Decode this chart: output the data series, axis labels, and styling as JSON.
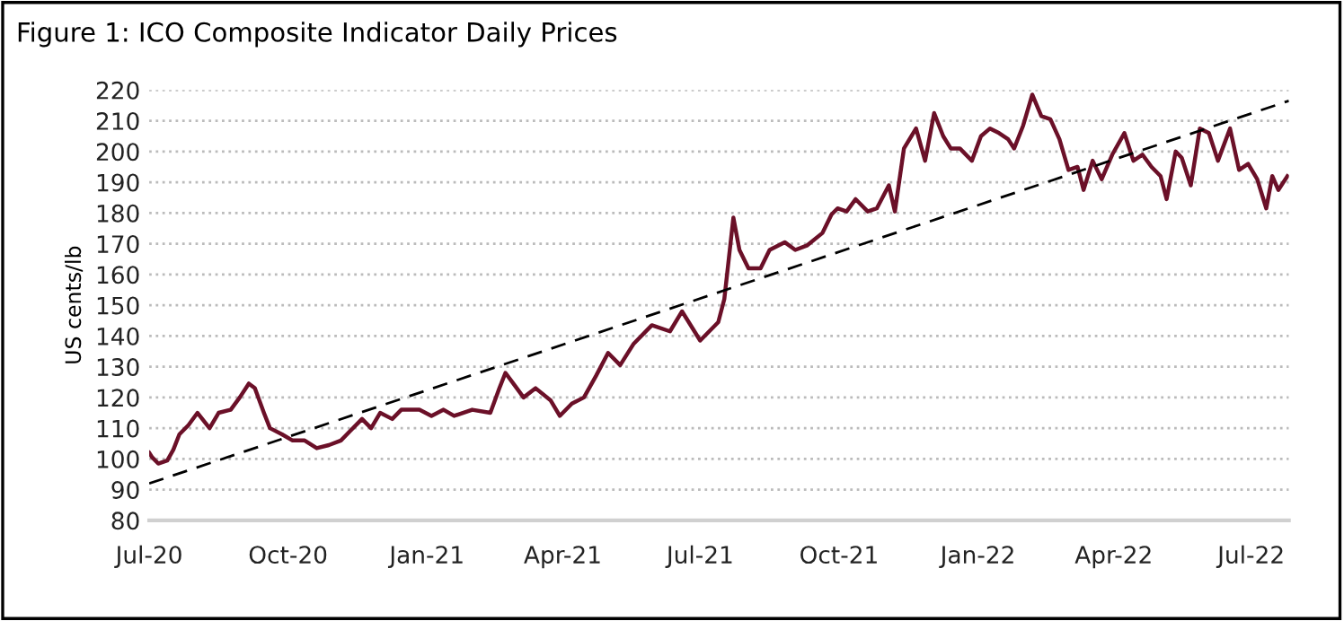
{
  "chart_data": {
    "type": "line",
    "title": "Figure 1: ICO Composite Indicator Daily Prices",
    "ylabel": "US cents/lb",
    "xlim": [
      "2020-07-01",
      "2022-07-26"
    ],
    "ylim": [
      80,
      220
    ],
    "xticks": [
      {
        "value": "2020-07-01",
        "label": "Jul-20"
      },
      {
        "value": "2020-10-01",
        "label": "Oct-20"
      },
      {
        "value": "2021-01-01",
        "label": "Jan-21"
      },
      {
        "value": "2021-04-01",
        "label": "Apr-21"
      },
      {
        "value": "2021-07-01",
        "label": "Jul-21"
      },
      {
        "value": "2021-10-01",
        "label": "Oct-21"
      },
      {
        "value": "2022-01-01",
        "label": "Jan-22"
      },
      {
        "value": "2022-04-01",
        "label": "Apr-22"
      },
      {
        "value": "2022-07-01",
        "label": "Jul-22"
      }
    ],
    "yticks": [
      80,
      90,
      100,
      110,
      120,
      130,
      140,
      150,
      160,
      170,
      180,
      190,
      200,
      210,
      220
    ],
    "grid": "y",
    "marker": "none",
    "series": [
      {
        "color": "#6b1028",
        "line_style": "solid",
        "x": [
          "2020-07-01",
          "2020-07-03",
          "2020-07-07",
          "2020-07-13",
          "2020-07-17",
          "2020-07-21",
          "2020-07-27",
          "2020-08-02",
          "2020-08-10",
          "2020-08-16",
          "2020-08-24",
          "2020-08-30",
          "2020-09-05",
          "2020-09-09",
          "2020-09-15",
          "2020-09-19",
          "2020-09-27",
          "2020-10-04",
          "2020-10-12",
          "2020-10-20",
          "2020-10-28",
          "2020-11-05",
          "2020-11-11",
          "2020-11-19",
          "2020-11-25",
          "2020-12-01",
          "2020-12-09",
          "2020-12-15",
          "2020-12-27",
          "2021-01-04",
          "2021-01-12",
          "2021-01-19",
          "2021-01-31",
          "2021-02-12",
          "2021-02-18",
          "2021-02-22",
          "2021-02-28",
          "2021-03-06",
          "2021-03-14",
          "2021-03-24",
          "2021-03-30",
          "2021-04-07",
          "2021-04-15",
          "2021-04-23",
          "2021-05-01",
          "2021-05-09",
          "2021-05-18",
          "2021-05-30",
          "2021-06-11",
          "2021-06-19",
          "2021-07-01",
          "2021-07-13",
          "2021-07-17",
          "2021-07-23",
          "2021-07-27",
          "2021-08-02",
          "2021-08-10",
          "2021-08-16",
          "2021-08-26",
          "2021-09-02",
          "2021-09-10",
          "2021-09-20",
          "2021-09-26",
          "2021-09-30",
          "2021-10-06",
          "2021-10-12",
          "2021-10-20",
          "2021-10-26",
          "2021-11-03",
          "2021-11-07",
          "2021-11-13",
          "2021-11-21",
          "2021-11-27",
          "2021-12-03",
          "2021-12-09",
          "2021-12-14",
          "2021-12-20",
          "2021-12-28",
          "2022-01-03",
          "2022-01-09",
          "2022-01-15",
          "2022-01-21",
          "2022-01-25",
          "2022-01-31",
          "2022-02-06",
          "2022-02-12",
          "2022-02-18",
          "2022-02-24",
          "2022-03-02",
          "2022-03-08",
          "2022-03-12",
          "2022-03-18",
          "2022-03-24",
          "2022-03-31",
          "2022-04-08",
          "2022-04-14",
          "2022-04-20",
          "2022-04-26",
          "2022-05-02",
          "2022-05-06",
          "2022-05-12",
          "2022-05-16",
          "2022-05-22",
          "2022-05-28",
          "2022-06-03",
          "2022-06-09",
          "2022-06-17",
          "2022-06-23",
          "2022-06-29",
          "2022-07-05",
          "2022-07-11",
          "2022-07-15",
          "2022-07-19",
          "2022-07-25"
        ],
        "values": [
          102,
          100.5,
          98.5,
          99.5,
          103,
          108,
          111,
          115,
          110,
          115,
          116,
          120,
          124.5,
          123,
          115,
          110,
          108,
          106,
          106,
          103.5,
          104.5,
          106,
          109,
          113,
          110,
          115,
          113,
          116,
          116,
          114,
          116,
          114,
          116,
          115,
          123,
          128,
          124,
          120,
          123,
          119,
          114,
          118,
          120,
          127,
          134.5,
          130.5,
          137.5,
          143.5,
          141.5,
          148,
          138.5,
          144.5,
          152,
          178.5,
          168,
          162,
          162,
          168,
          170.5,
          168,
          169.5,
          173.5,
          179.5,
          181.5,
          180.5,
          184.5,
          180.5,
          181.5,
          189,
          180.5,
          201,
          207.5,
          197,
          212.5,
          205,
          201,
          201,
          197,
          205,
          207.5,
          206,
          204,
          201,
          208.5,
          218.5,
          211.5,
          210.5,
          204,
          194,
          195,
          187.5,
          197,
          191,
          199,
          206,
          197,
          199,
          195,
          192,
          184.5,
          200,
          198,
          189,
          207.5,
          206,
          197,
          207.5,
          194,
          196,
          191,
          181.5,
          192,
          187.5,
          192
        ]
      },
      {
        "color": "#000000",
        "line_style": "dashed",
        "x": [
          "2020-07-01",
          "2022-07-26"
        ],
        "values": [
          92,
          216.5
        ]
      }
    ]
  }
}
